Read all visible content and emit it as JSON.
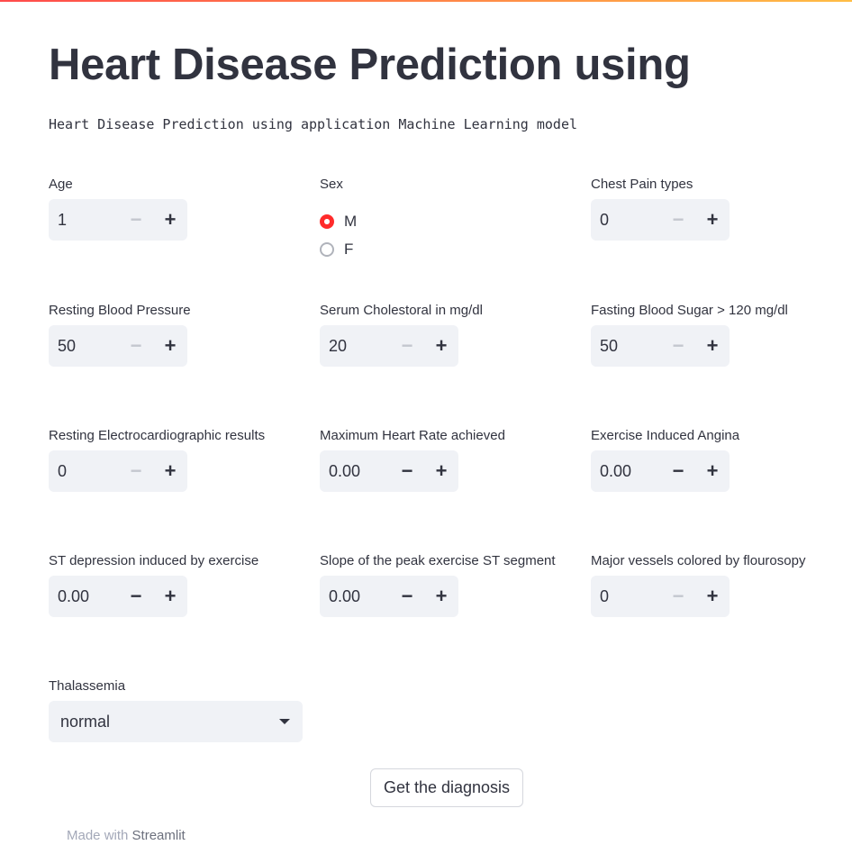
{
  "header": {
    "title": "Heart Disease Prediction using",
    "subtitle": "Heart Disease Prediction using application Machine Learning model"
  },
  "fields": {
    "age": {
      "label": "Age",
      "value": "1"
    },
    "sex": {
      "label": "Sex",
      "options": [
        "M",
        "F"
      ],
      "selected": "M"
    },
    "chest_pain": {
      "label": "Chest Pain types",
      "value": "0"
    },
    "resting_bp": {
      "label": "Resting Blood Pressure",
      "value": "50"
    },
    "cholesterol": {
      "label": "Serum Cholestoral in mg/dl",
      "value": "20"
    },
    "fasting_sugar": {
      "label": "Fasting Blood Sugar > 120 mg/dl",
      "value": "50"
    },
    "resting_ecg": {
      "label": "Resting Electrocardiographic results",
      "value": "0"
    },
    "max_heart_rate": {
      "label": "Maximum Heart Rate achieved",
      "value": "0.00"
    },
    "exercise_angina": {
      "label": "Exercise Induced Angina",
      "value": "0.00"
    },
    "st_depression": {
      "label": "ST depression induced by exercise",
      "value": "0.00"
    },
    "st_slope": {
      "label": "Slope of the peak exercise ST segment",
      "value": "0.00"
    },
    "major_vessels": {
      "label": "Major vessels colored by flourosopy",
      "value": "0"
    },
    "thalassemia": {
      "label": "Thalassemia",
      "value": "normal"
    }
  },
  "icons": {
    "decrement": "minus-icon",
    "increment": "plus-icon",
    "dropdown": "chevron-down-icon"
  },
  "actions": {
    "submit_label": "Get the diagnosis"
  },
  "footer": {
    "prefix": "Made with",
    "brand": "Streamlit"
  },
  "colors": {
    "accent": "#ff2b2b",
    "input_bg": "#f0f2f6",
    "text": "#31333f"
  }
}
